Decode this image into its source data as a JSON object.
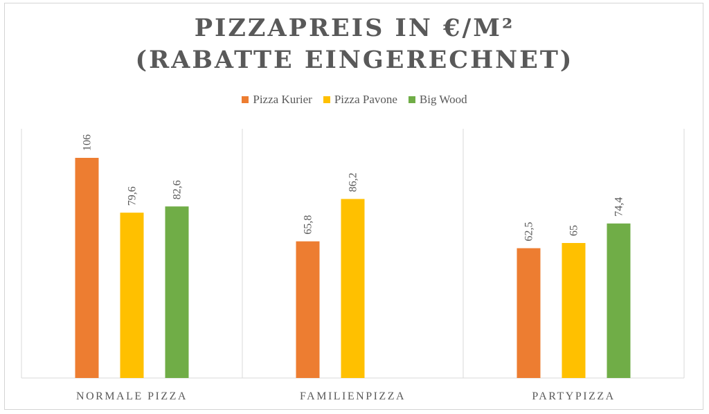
{
  "chart_data": {
    "type": "bar",
    "title_lines": [
      "PIZZAPREIS IN €/M²",
      "(RABATTE EINGERECHNET)"
    ],
    "categories": [
      "NORMALE PIZZA",
      "FAMILIENPIZZA",
      "PARTYPIZZA"
    ],
    "series": [
      {
        "name": "Pizza Kurier",
        "color": "#ED7D31",
        "values": [
          106,
          65.8,
          62.5
        ],
        "labels": [
          "106",
          "65,8",
          "62,5"
        ]
      },
      {
        "name": "Pizza Pavone",
        "color": "#FFC000",
        "values": [
          79.6,
          86.2,
          65
        ],
        "labels": [
          "79,6",
          "86,2",
          "65"
        ]
      },
      {
        "name": "Big Wood",
        "color": "#70AD47",
        "values": [
          82.6,
          null,
          74.4
        ],
        "labels": [
          "82,6",
          "",
          "74,4"
        ]
      }
    ],
    "ylim": [
      0,
      120
    ],
    "grid": false,
    "category_separators": true,
    "legend_position": "top",
    "data_labels_rotated": true
  }
}
